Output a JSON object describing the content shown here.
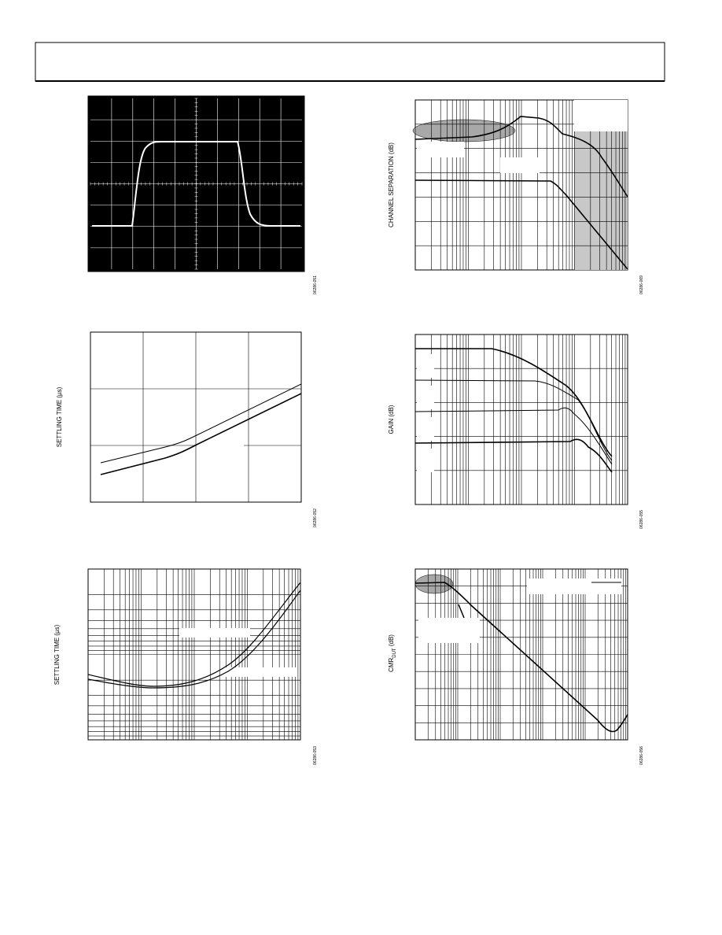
{
  "figures": [
    {
      "figure_id": "06286-051"
    },
    {
      "y_label": "SETTLING TIME (µs)",
      "figure_id": "06286-052"
    },
    {
      "y_label": "SETTLING TIME (µs)",
      "figure_id": "06286-053"
    },
    {
      "y_label": "CHANNEL SEPARATION (dB)",
      "figure_id": "06286-069"
    },
    {
      "y_label": "GAIN (dB)",
      "figure_id": "06286-055"
    },
    {
      "y_label_main": "CMR",
      "y_label_sub": "DUT",
      "y_label_unit": " (dB)",
      "figure_id": "06286-056"
    }
  ]
}
